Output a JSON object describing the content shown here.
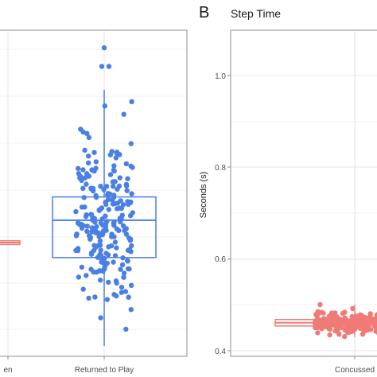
{
  "panels": [
    {
      "panel_letter": "",
      "title": "",
      "category_labels": [
        "en",
        "Returned to Play"
      ]
    },
    {
      "panel_letter": "B",
      "title": "Step Time",
      "ylabel": "Seconds (s)",
      "category_labels": [
        "Concussed"
      ],
      "ytick_labels": [
        "0.4",
        "0.6",
        "0.8",
        "1.0"
      ]
    }
  ],
  "colors": {
    "blue": "#4a7fe3",
    "red": "#f07b76",
    "panel_border": "#8c8c8c",
    "grid": "#ebebeb"
  },
  "chart_data": [
    {
      "type": "boxplot",
      "title": "",
      "ylabel": "",
      "categories": [
        "(cropped)",
        "Returned to Play"
      ],
      "ylim": [
        0.4,
        1.1
      ],
      "yticks": [],
      "grid": true,
      "series": [
        {
          "category": "(cropped)",
          "color": "#f07b76",
          "box": {
            "q1": 0.628,
            "median": 0.632,
            "q3": 0.636
          }
        },
        {
          "category": "Returned to Play",
          "color": "#4a7fe3",
          "box": {
            "min": 0.41,
            "q1": 0.6,
            "median": 0.68,
            "q3": 0.73,
            "max": 0.96
          },
          "outliers": [
            1.05,
            1.01,
            1.01
          ],
          "points_count": 230,
          "points_range": [
            0.4,
            0.97
          ]
        }
      ]
    },
    {
      "type": "boxplot",
      "title": "Step Time",
      "ylabel": "Seconds (s)",
      "categories": [
        "Concussed"
      ],
      "ylim": [
        0.39,
        1.1
      ],
      "yticks": [
        0.4,
        0.6,
        0.8,
        1.0
      ],
      "grid": true,
      "series": [
        {
          "category": "Concussed",
          "color": "#f07b76",
          "box": {
            "min": 0.43,
            "q1": 0.454,
            "median": 0.461,
            "q3": 0.468,
            "max": 0.5
          },
          "points_count": 260,
          "points_range": [
            0.43,
            0.53
          ]
        }
      ]
    }
  ]
}
